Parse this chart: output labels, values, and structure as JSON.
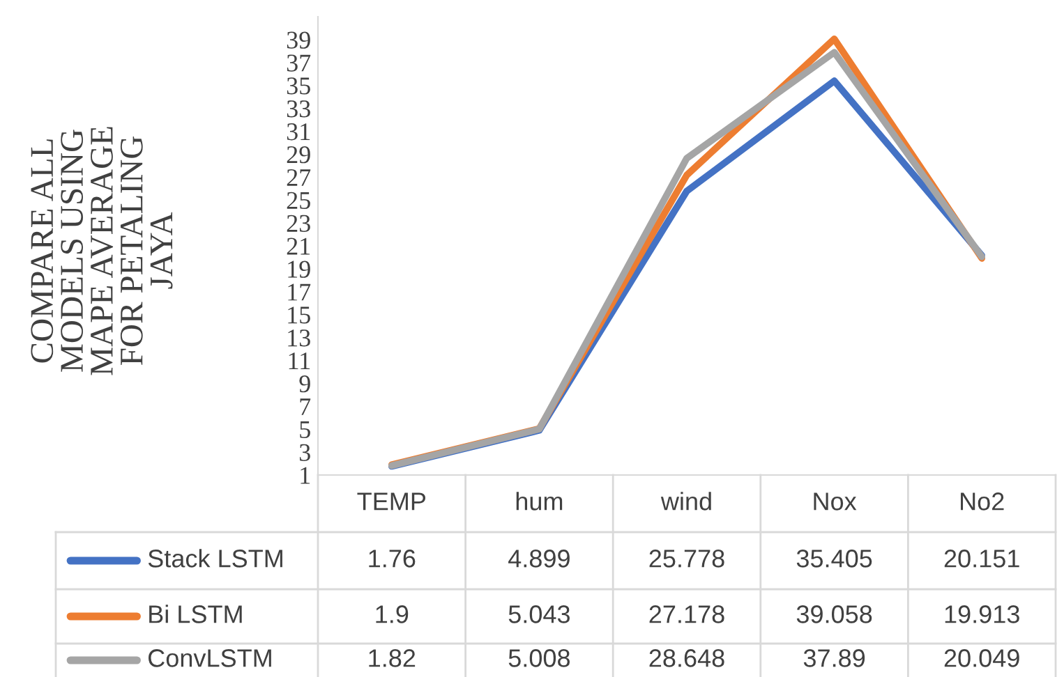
{
  "chart_data": {
    "type": "line",
    "ylabel": "COMPARE ALL MODELS USING MAPE AVERAGE FOR PETALING JAYA",
    "categories": [
      "TEMP",
      "hum",
      "wind",
      "Nox",
      "No2"
    ],
    "series": [
      {
        "name": "Stack LSTM",
        "color": "#4472c4",
        "values": [
          1.76,
          4.899,
          25.778,
          35.405,
          20.151
        ]
      },
      {
        "name": "Bi LSTM",
        "color": "#ed7d31",
        "values": [
          1.9,
          5.043,
          27.178,
          39.058,
          19.913
        ]
      },
      {
        "name": "ConvLSTM",
        "color": "#a5a5a5",
        "values": [
          1.82,
          5.008,
          28.648,
          37.89,
          20.049
        ]
      }
    ],
    "ylim": [
      1,
      41
    ],
    "yticks": [
      1,
      3,
      5,
      7,
      9,
      11,
      13,
      15,
      17,
      19,
      21,
      23,
      25,
      27,
      29,
      31,
      33,
      35,
      37,
      39
    ],
    "grid": false,
    "legend": "bottom",
    "data_labels": true,
    "marker": "none",
    "line_style": "solid"
  }
}
